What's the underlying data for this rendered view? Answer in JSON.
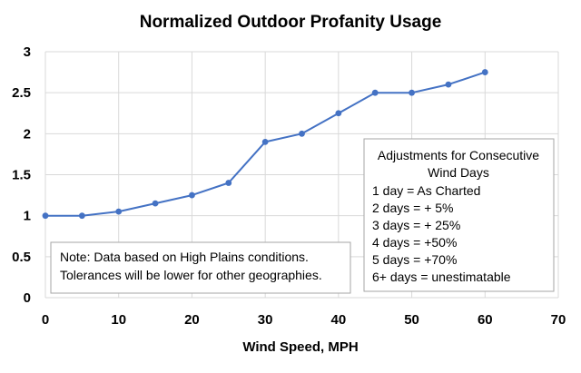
{
  "chart_data": {
    "type": "line",
    "title": "Normalized Outdoor Profanity Usage",
    "xlabel": "Wind Speed, MPH",
    "ylabel": "",
    "xlim": [
      0,
      70
    ],
    "ylim": [
      0,
      3
    ],
    "x_ticks": [
      "0",
      "10",
      "20",
      "30",
      "40",
      "50",
      "60",
      "70"
    ],
    "y_ticks": [
      "0",
      "0.5",
      "1",
      "1.5",
      "2",
      "2.5",
      "3"
    ],
    "grid": true,
    "series": [
      {
        "color": "#4472C4",
        "x": [
          0,
          5,
          10,
          15,
          20,
          25,
          30,
          35,
          40,
          45,
          50,
          55,
          60
        ],
        "y": [
          1.0,
          1.0,
          1.05,
          1.15,
          1.25,
          1.4,
          1.9,
          2.0,
          2.25,
          2.5,
          2.5,
          2.6,
          2.75
        ]
      }
    ],
    "annotations": {
      "note": {
        "lines": [
          "Note: Data based on High Plains conditions.",
          "Tolerances will be lower for other geographies."
        ]
      },
      "adjustments": {
        "title_lines": [
          "Adjustments for Consecutive",
          "Wind Days"
        ],
        "lines": [
          "1 day = As Charted",
          "2 days = + 5%",
          "3 days = + 25%",
          "4 days = +50%",
          "5 days = +70%",
          "6+ days = unestimatable"
        ]
      }
    }
  }
}
